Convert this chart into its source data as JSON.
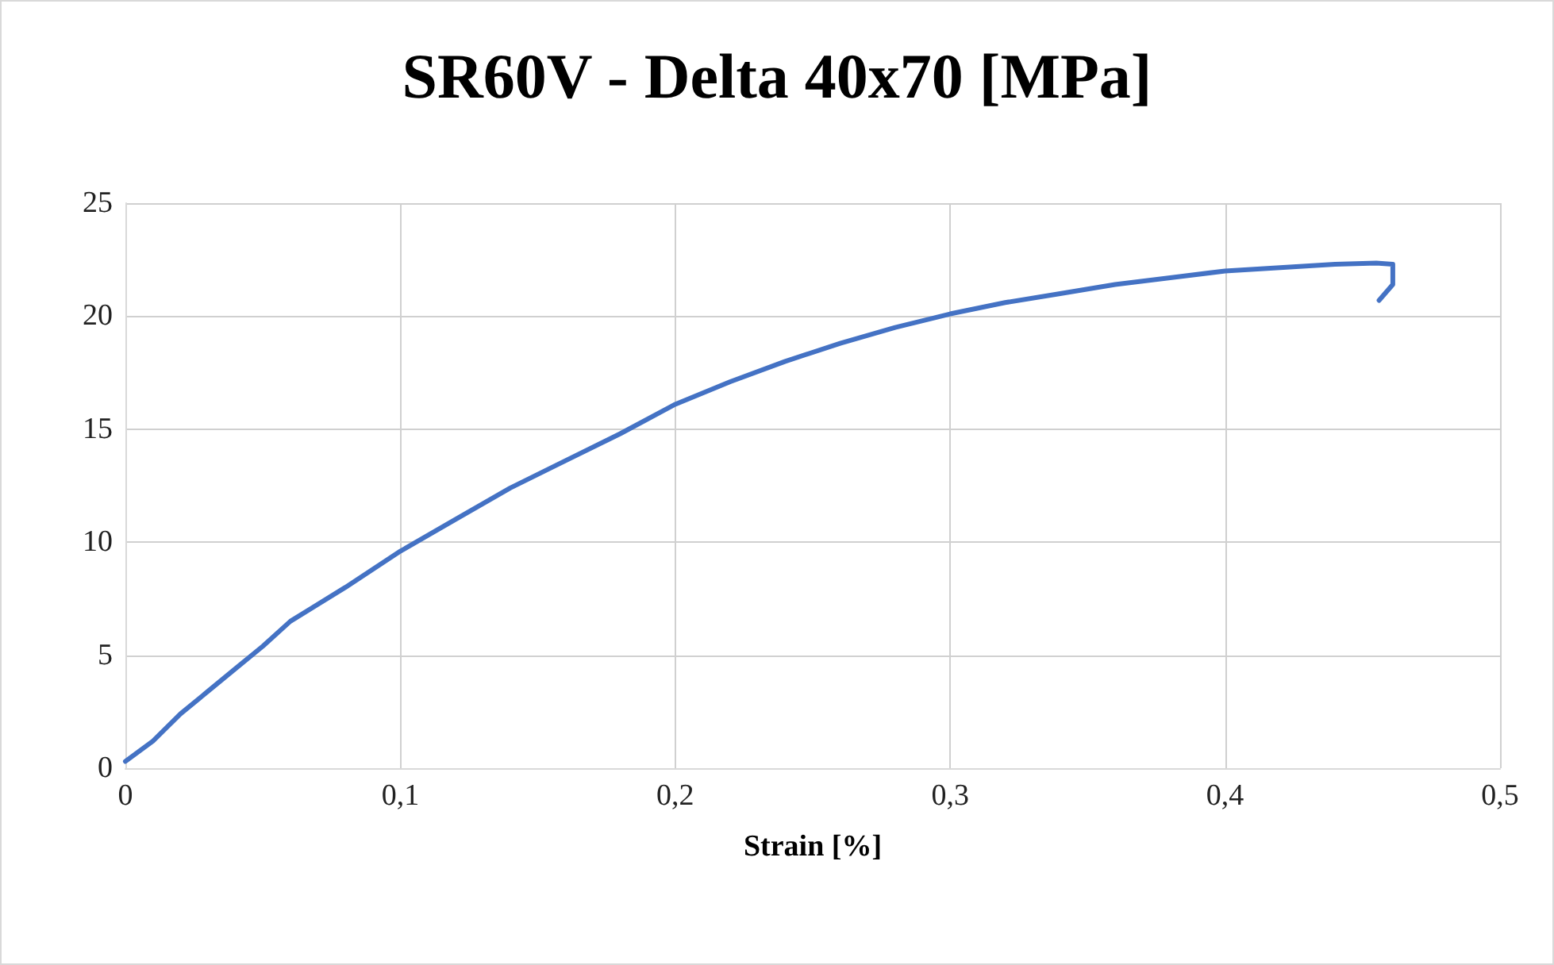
{
  "chart_data": {
    "type": "line",
    "title": "SR60V - Delta 40x70 [MPa]",
    "xlabel": "Strain [%]",
    "series": [
      {
        "color": "#4472c4",
        "x": [
          0,
          0.01,
          0.02,
          0.03,
          0.04,
          0.05,
          0.06,
          0.08,
          0.1,
          0.12,
          0.14,
          0.16,
          0.18,
          0.2,
          0.22,
          0.24,
          0.26,
          0.28,
          0.3,
          0.32,
          0.34,
          0.36,
          0.38,
          0.4,
          0.42,
          0.44,
          0.455,
          0.461,
          0.461,
          0.456
        ],
        "values": [
          0.3,
          1.2,
          2.4,
          3.4,
          4.4,
          5.4,
          6.5,
          8,
          9.6,
          11,
          12.4,
          13.6,
          14.8,
          16.1,
          17.1,
          18,
          18.8,
          19.5,
          20.1,
          20.6,
          21,
          21.4,
          21.7,
          22,
          22.15,
          22.3,
          22.35,
          22.3,
          21.4,
          20.7
        ]
      }
    ],
    "xlim": [
      0,
      0.5
    ],
    "xticks": [
      0,
      {
        "value": 0.1,
        "label": "0,1"
      },
      {
        "value": 0.2,
        "label": "0,2"
      },
      {
        "value": 0.3,
        "label": "0,3"
      },
      {
        "value": 0.4,
        "label": "0,4"
      },
      {
        "value": 0.5,
        "label": "0,5"
      }
    ],
    "ylim": [
      0,
      25
    ],
    "yticks": [
      0,
      5,
      10,
      15,
      20,
      25
    ],
    "grid": true,
    "marker": "none",
    "line_style": "solid"
  }
}
